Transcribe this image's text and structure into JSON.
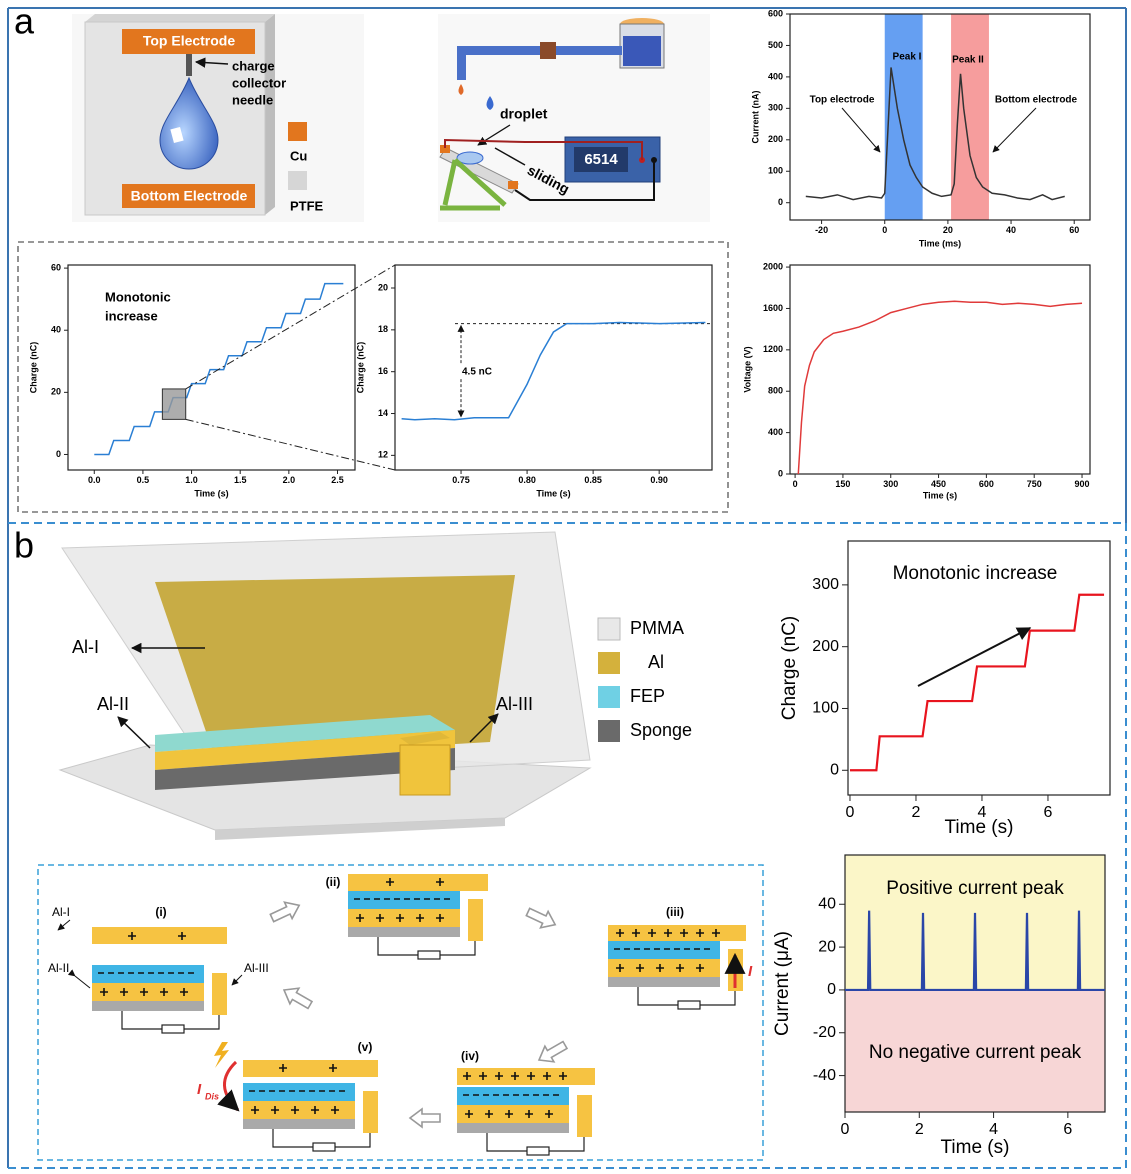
{
  "figure": {
    "panel_labels": [
      "a",
      "b"
    ],
    "device_a": {
      "top_electrode": "Top Electrode",
      "needle_label": [
        "charge",
        "collector",
        "needle"
      ],
      "bottom_electrode": "Bottom Electrode",
      "legend": [
        "Cu",
        "PTFE"
      ]
    },
    "setup_a": {
      "droplet": "droplet",
      "sliding": "sliding",
      "meter": "6514"
    },
    "device_b": {
      "labels": [
        "Al-I",
        "Al-II",
        "Al-III"
      ],
      "legend": [
        "PMMA",
        "Al",
        "FEP",
        "Sponge"
      ]
    },
    "cycle": {
      "steps": [
        "(i)",
        "(ii)",
        "(iii)",
        "(iv)",
        "(v)"
      ],
      "labels": [
        "Al-I",
        "Al-II",
        "Al-III"
      ],
      "current": "I",
      "discharge_current": "I",
      "discharge_subscript": "Dis"
    }
  },
  "chart_data": [
    {
      "type": "line",
      "x_label": "Time (ms)",
      "y_label": "Current (nA)",
      "color": "#333333",
      "x": [
        -25,
        -20,
        -15,
        -10,
        -5,
        -1,
        0,
        2,
        4,
        6,
        8,
        10,
        12,
        15,
        18,
        21,
        22,
        23,
        24,
        25,
        27,
        29,
        31,
        34,
        38,
        42,
        46,
        50,
        53,
        57
      ],
      "values": [
        20,
        15,
        25,
        10,
        20,
        15,
        30,
        430,
        300,
        200,
        120,
        80,
        50,
        30,
        20,
        25,
        60,
        250,
        410,
        300,
        150,
        80,
        50,
        30,
        25,
        15,
        10,
        25,
        10,
        20
      ],
      "xlim": [
        -30,
        65
      ],
      "xticks": [
        -20,
        0,
        20,
        40,
        60
      ],
      "ylim": [
        -55,
        600
      ],
      "yticks": [
        0,
        100,
        200,
        300,
        400,
        500,
        600
      ],
      "highlight_spans": [
        {
          "x": [
            0,
            12
          ],
          "color": "#4a8ef0"
        },
        {
          "x": [
            21,
            33
          ],
          "color": "#f48c8c"
        }
      ],
      "annotations": [
        "Peak I",
        "Peak II",
        "Top electrode",
        "Bottom electrode"
      ]
    },
    {
      "type": "line",
      "x_label": "Time (s)",
      "y_label": "Charge (nC)",
      "color": "#2a7fd4",
      "x": [
        0,
        0.15,
        0.2,
        0.36,
        0.41,
        0.57,
        0.62,
        0.76,
        0.81,
        0.95,
        1.0,
        1.14,
        1.19,
        1.33,
        1.38,
        1.52,
        1.57,
        1.72,
        1.77,
        1.92,
        1.97,
        2.12,
        2.17,
        2.32,
        2.37,
        2.56
      ],
      "values": [
        0,
        0,
        4.5,
        4.5,
        9,
        9,
        13.7,
        13.7,
        18.3,
        18.3,
        22.8,
        22.8,
        27.3,
        27.3,
        31.8,
        31.8,
        36.3,
        36.3,
        40.8,
        40.8,
        45.4,
        45.4,
        50,
        50,
        55,
        55
      ],
      "xlim": [
        -0.27,
        2.68
      ],
      "xticks": [
        {
          "value": 0,
          "label": "0.0"
        },
        0.5,
        {
          "value": 1,
          "label": "1.0"
        },
        1.5,
        {
          "value": 2,
          "label": "2.0"
        },
        2.5
      ],
      "ylim": [
        -5,
        61
      ],
      "yticks": [
        0,
        20,
        40,
        60
      ],
      "annotations": [
        "Monotonic",
        "increase"
      ]
    },
    {
      "type": "line",
      "x_label": "Time (s)",
      "y_label": "Charge (nC)",
      "color": "#2a7fd4",
      "x": [
        0.705,
        0.715,
        0.73,
        0.745,
        0.76,
        0.775,
        0.786,
        0.8,
        0.81,
        0.82,
        0.83,
        0.85,
        0.87,
        0.9,
        0.935
      ],
      "values": [
        13.75,
        13.7,
        13.75,
        13.7,
        13.8,
        13.8,
        13.8,
        15.4,
        16.8,
        17.9,
        18.3,
        18.3,
        18.35,
        18.3,
        18.35
      ],
      "xlim": [
        0.7,
        0.94
      ],
      "xticks": [
        0.75,
        {
          "value": 0.8,
          "label": "0.80"
        },
        0.85,
        {
          "value": 0.9,
          "label": "0.90"
        }
      ],
      "ylim": [
        11.3,
        21.1
      ],
      "yticks": [
        12,
        14,
        16,
        18,
        20
      ],
      "reference_y": 18.3,
      "annotations": [
        "4.5 nC"
      ]
    },
    {
      "type": "line",
      "x_label": "Time (s)",
      "y_label": "Voltage (V)",
      "color": "#e03a3a",
      "x": [
        10,
        20,
        30,
        45,
        60,
        90,
        120,
        150,
        200,
        250,
        300,
        350,
        400,
        450,
        500,
        550,
        600,
        650,
        700,
        750,
        800,
        850,
        900
      ],
      "values": [
        0,
        500,
        850,
        1050,
        1180,
        1300,
        1360,
        1380,
        1420,
        1480,
        1560,
        1600,
        1640,
        1660,
        1670,
        1660,
        1660,
        1640,
        1650,
        1640,
        1620,
        1640,
        1650
      ],
      "xlim": [
        -16,
        925
      ],
      "xticks": [
        0,
        150,
        300,
        450,
        600,
        750,
        900
      ],
      "ylim": [
        0,
        2020
      ],
      "yticks": [
        0,
        400,
        800,
        1200,
        1600,
        2000
      ]
    },
    {
      "type": "line",
      "x_label": "Time (s)",
      "y_label": "Charge (nC)",
      "color": "#e8141e",
      "x": [
        0,
        0.8,
        0.9,
        2.2,
        2.35,
        3.7,
        3.85,
        5.3,
        5.45,
        6.8,
        6.95,
        7.7
      ],
      "values": [
        0,
        0,
        55,
        55,
        112,
        112,
        168,
        168,
        226,
        226,
        284,
        284
      ],
      "xlim": [
        -0.06,
        7.88
      ],
      "xticks": [
        0,
        2,
        4,
        6
      ],
      "ylim": [
        -40,
        371
      ],
      "yticks": [
        0,
        100,
        200,
        300
      ],
      "annotations": [
        "Monotonic increase"
      ]
    },
    {
      "type": "line",
      "x_label": "Time (s)",
      "y_label": "Current (μA)",
      "color": "#2a46a8",
      "x": [
        0,
        0.62,
        0.65,
        0.68,
        2.07,
        2.1,
        2.13,
        3.47,
        3.5,
        3.53,
        4.87,
        4.9,
        4.93,
        6.27,
        6.3,
        6.33,
        7
      ],
      "values": [
        0,
        0,
        37,
        0,
        0,
        36,
        0,
        0,
        36,
        0,
        0,
        36,
        0,
        0,
        37,
        0,
        0
      ],
      "xlim": [
        0,
        7
      ],
      "xticks": [
        0,
        2,
        4,
        6
      ],
      "ylim": [
        -57,
        63
      ],
      "yticks": [
        -40,
        -20,
        0,
        20,
        40
      ],
      "region_colors": {
        "positive": "#fbf6c8",
        "negative": "#f7d6d6"
      },
      "annotations": [
        "Positive current peak",
        "No negative current peak"
      ]
    }
  ]
}
